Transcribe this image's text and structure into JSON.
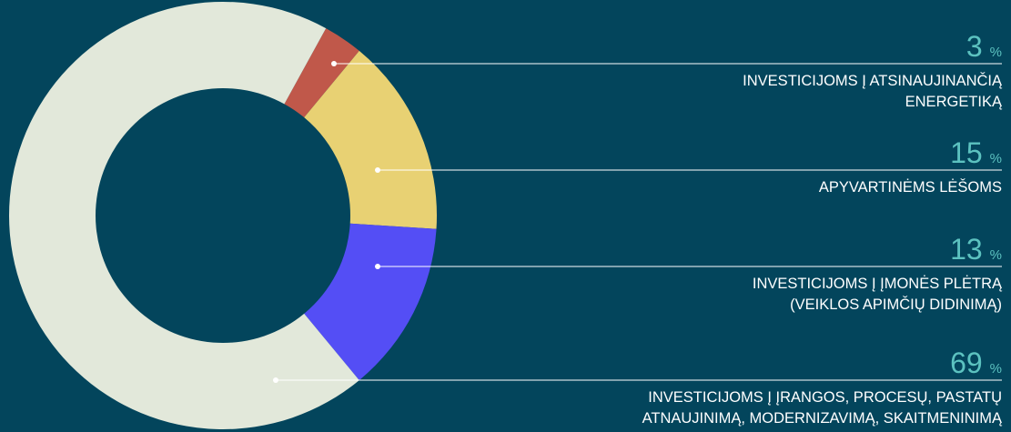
{
  "chart_data": {
    "type": "donut",
    "categories": [
      [
        "INVESTICIJOMS Į ATSINAUJINANČIĄ",
        "ENERGETIKĄ"
      ],
      [
        "APYVARTINĖMS LĖŠOMS"
      ],
      [
        "INVESTICIJOMS Į ĮMONĖS PLĖTRĄ",
        "(VEIKLOS APIMČIŲ DIDINIMĄ)"
      ],
      [
        "INVESTICIJOMS Į ĮRANGOS, PROCESŲ, PASTATŲ",
        "ATNAUJINIMĄ, MODERNIZAVIMĄ, SKAITMENINIMĄ"
      ]
    ],
    "values": [
      3,
      15,
      13,
      69
    ],
    "value_unit": "%",
    "colors": [
      "#c0584a",
      "#e8d173",
      "#544ef5",
      "#e2e8da"
    ]
  }
}
